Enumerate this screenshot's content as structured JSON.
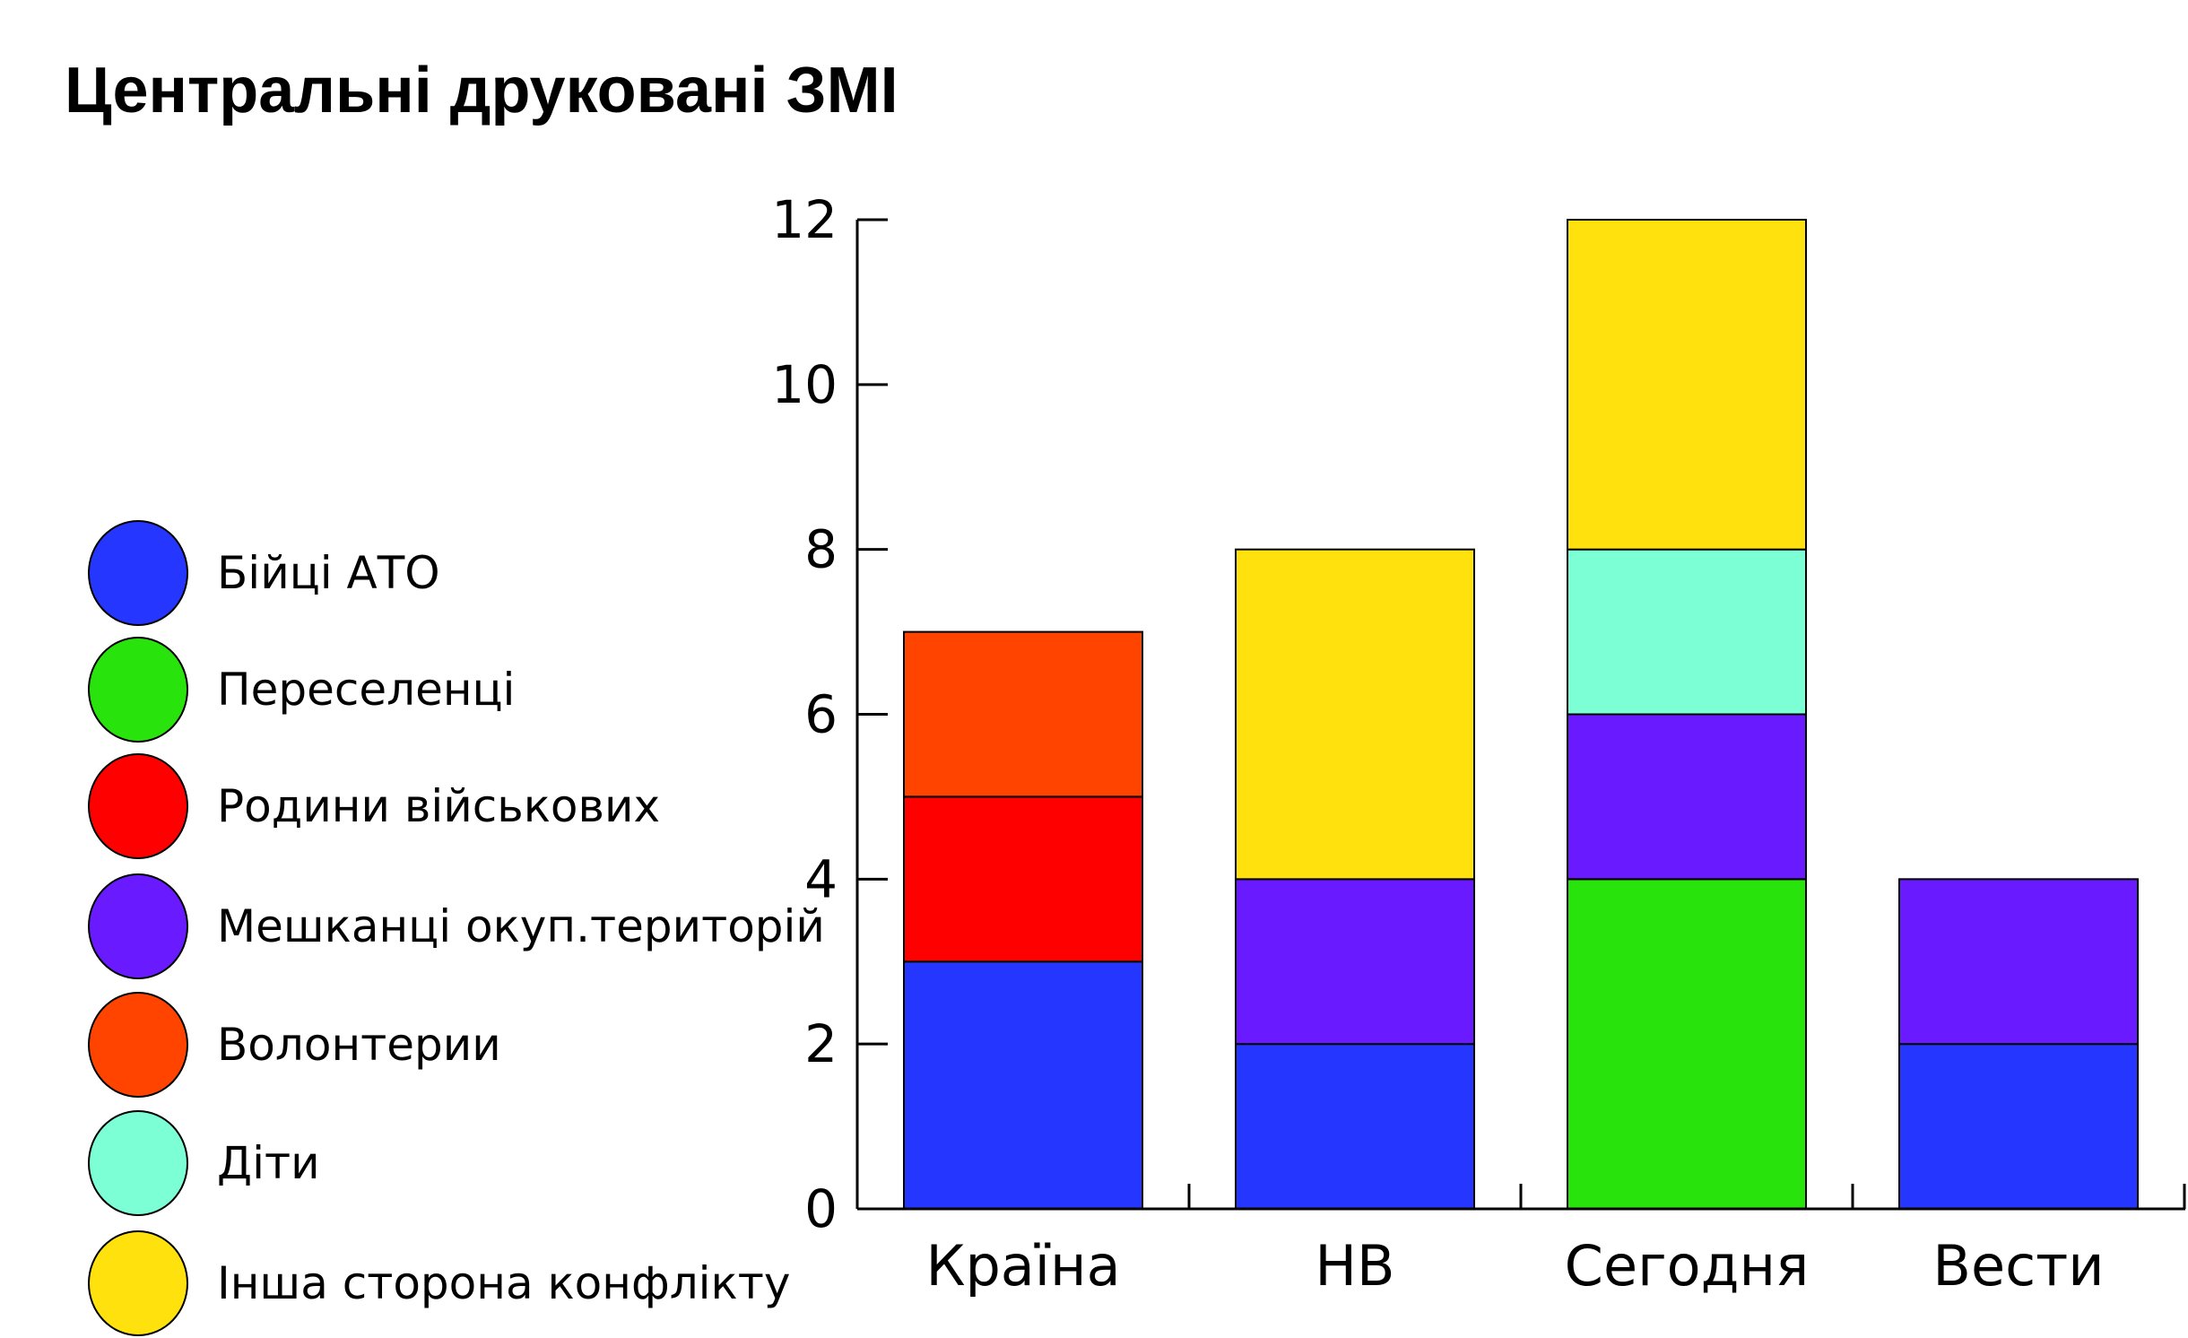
{
  "title": "Центральні друковані ЗМІ",
  "legend": [
    {
      "label": "Бійці АТО",
      "color": "#2536ff"
    },
    {
      "label": "Переселенці",
      "color": "#29e30c"
    },
    {
      "label": "Родини військових",
      "color": "#ff0000"
    },
    {
      "label": "Мешканці окуп.територій",
      "color": "#6a1aff"
    },
    {
      "label": "Волонтерии",
      "color": "#ff4400"
    },
    {
      "label": "Діти",
      "color": "#7dffd6"
    },
    {
      "label": "Інша сторона конфлікту",
      "color": "#ffe10e"
    }
  ],
  "chart_data": {
    "type": "bar",
    "stacked": true,
    "categories": [
      "Країна",
      "НВ",
      "Сегодня",
      "Вести"
    ],
    "series": [
      {
        "name": "Бійці АТО",
        "color": "#2536ff",
        "values": [
          3,
          2,
          0,
          2
        ]
      },
      {
        "name": "Переселенці",
        "color": "#29e30c",
        "values": [
          0,
          0,
          4,
          0
        ]
      },
      {
        "name": "Родини військових",
        "color": "#ff0000",
        "values": [
          2,
          0,
          0,
          0
        ]
      },
      {
        "name": "Мешканці окуп.територій",
        "color": "#6a1aff",
        "values": [
          0,
          2,
          2,
          2
        ]
      },
      {
        "name": "Волонтерии",
        "color": "#ff4400",
        "values": [
          2,
          0,
          0,
          0
        ]
      },
      {
        "name": "Діти",
        "color": "#7dffd6",
        "values": [
          0,
          0,
          2,
          0
        ]
      },
      {
        "name": "Інша сторона конфлікту",
        "color": "#ffe10e",
        "values": [
          0,
          4,
          4,
          0
        ]
      }
    ],
    "title": "Центральні друковані ЗМІ",
    "xlabel": "",
    "ylabel": "",
    "ylim": [
      0,
      12
    ],
    "yticks": [
      "0",
      "2",
      "4",
      "6",
      "8",
      "10",
      "12"
    ],
    "grid": false,
    "legend_position": "left"
  }
}
